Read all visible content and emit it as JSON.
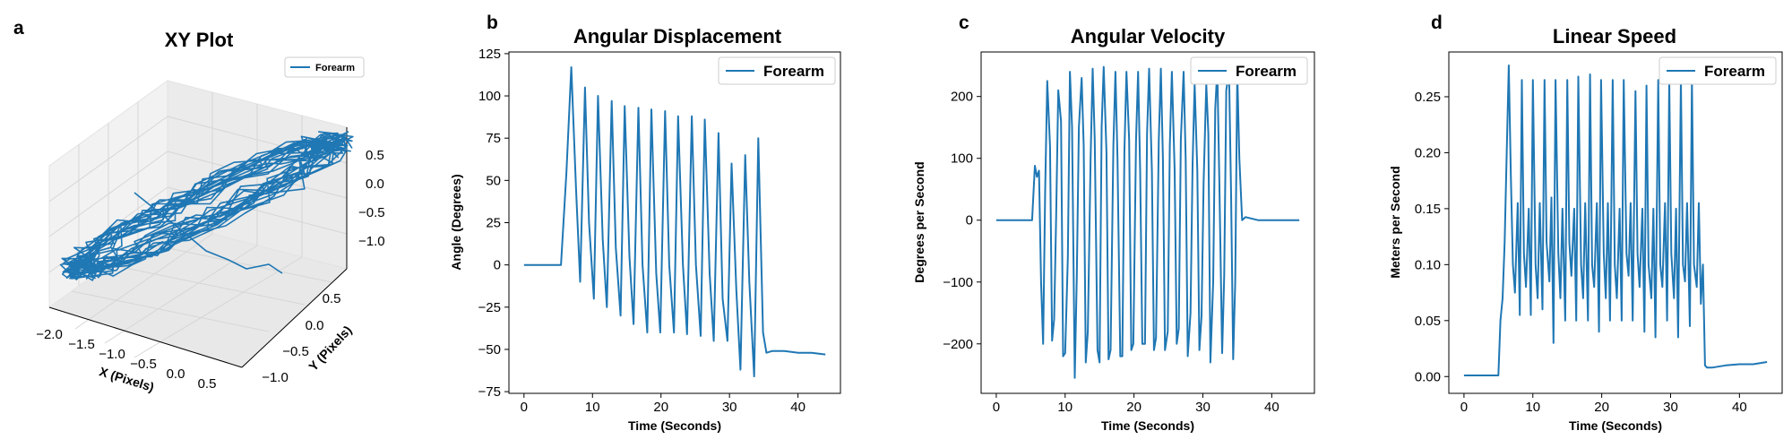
{
  "colors": {
    "series": "#1f77b4",
    "axis": "#000000",
    "pane": "#f2f2f2",
    "grid": "#d9d9d9",
    "legend_border": "#cccccc"
  },
  "chart_data": [
    {
      "id": "a",
      "panel": "a",
      "type": "line3d",
      "title": "XY Plot",
      "xlabel": "X (Pixels)",
      "ylabel": "Y (Pixels)",
      "zlabel": "",
      "legend": [
        "Forearm"
      ],
      "legend_position": "top-right",
      "xticks": [
        "−2.0",
        "−1.5",
        "−1.0",
        "−0.5",
        "0.0",
        "0.5"
      ],
      "yticks": [
        "−1.0",
        "−0.5",
        "0.0",
        "0.5"
      ],
      "zticks": [
        "0.5",
        "0.0",
        "−0.5",
        "−1.0"
      ],
      "xlim": [
        -2.0,
        0.8
      ],
      "ylim": [
        -1.2,
        0.8
      ],
      "zlim": [
        -1.3,
        0.8
      ],
      "grid": true
    },
    {
      "id": "b",
      "panel": "b",
      "type": "line",
      "title": "Angular Displacement",
      "xlabel": "Time (Seconds)",
      "ylabel": "Angle (Degrees)",
      "legend": [
        "Forearm"
      ],
      "legend_position": "top-right",
      "xlim": [
        -2.2,
        46.2
      ],
      "ylim": [
        -76,
        126
      ],
      "xticks": [
        0,
        10,
        20,
        30,
        40
      ],
      "yticks": [
        -75,
        -50,
        -25,
        0,
        25,
        50,
        75,
        100,
        125
      ],
      "grid": false,
      "series": [
        {
          "name": "Forearm",
          "x": [
            0,
            5.4,
            6.2,
            6.9,
            7.6,
            8.2,
            8.9,
            9.5,
            10.2,
            10.8,
            11.5,
            12.1,
            12.8,
            13.4,
            14.1,
            14.7,
            15.4,
            16.0,
            16.7,
            17.3,
            18.0,
            18.6,
            19.3,
            19.9,
            20.6,
            21.2,
            21.9,
            22.5,
            23.2,
            23.8,
            24.5,
            25.1,
            25.8,
            26.4,
            27.1,
            27.7,
            28.4,
            29.0,
            29.7,
            30.3,
            31.0,
            31.6,
            32.3,
            32.9,
            33.6,
            34.2,
            34.9,
            35.4,
            36.2,
            38,
            40,
            42,
            44
          ],
          "y": [
            0,
            0,
            55,
            117,
            45,
            -10,
            105,
            25,
            -20,
            100,
            15,
            -25,
            97,
            10,
            -30,
            94,
            5,
            -35,
            93,
            0,
            -40,
            92,
            -5,
            -40,
            91,
            0,
            -40,
            88,
            0,
            -41,
            88,
            0,
            -42,
            86,
            -5,
            -45,
            78,
            -20,
            -45,
            60,
            -15,
            -62,
            65,
            -10,
            -66,
            75,
            -40,
            -52,
            -51,
            -51,
            -52,
            -52,
            -53
          ]
        }
      ]
    },
    {
      "id": "c",
      "panel": "c",
      "type": "line",
      "title": "Angular Velocity",
      "xlabel": "Time (Seconds)",
      "ylabel": "Degrees per Second",
      "legend": [
        "Forearm"
      ],
      "legend_position": "top-right",
      "xlim": [
        -2.2,
        46.2
      ],
      "ylim": [
        -280,
        272
      ],
      "xticks": [
        0,
        10,
        20,
        30,
        40
      ],
      "yticks": [
        -200,
        -100,
        0,
        100,
        200
      ],
      "grid": false,
      "series": [
        {
          "name": "Forearm",
          "x": [
            0,
            5.2,
            5.6,
            5.9,
            6.2,
            6.5,
            6.8,
            7.1,
            7.4,
            7.8,
            8.1,
            8.4,
            8.7,
            9.0,
            9.4,
            9.7,
            10.0,
            10.4,
            10.7,
            11.0,
            11.4,
            11.7,
            12.0,
            12.4,
            12.7,
            13.0,
            13.3,
            13.7,
            14.0,
            14.3,
            14.7,
            15.0,
            15.3,
            15.6,
            16.0,
            16.3,
            16.6,
            17.0,
            17.3,
            17.6,
            18.0,
            18.3,
            18.6,
            18.9,
            19.3,
            19.6,
            19.9,
            20.3,
            20.6,
            20.9,
            21.2,
            21.6,
            21.9,
            22.2,
            22.6,
            22.9,
            23.2,
            23.6,
            23.9,
            24.2,
            24.5,
            24.9,
            25.2,
            25.5,
            25.9,
            26.2,
            26.5,
            26.8,
            27.2,
            27.5,
            27.8,
            28.2,
            28.5,
            28.8,
            29.2,
            29.5,
            29.8,
            30.1,
            30.5,
            30.8,
            31.1,
            31.5,
            31.8,
            32.1,
            32.4,
            32.8,
            33.1,
            33.4,
            33.8,
            34.1,
            34.4,
            34.7,
            35.0,
            35.3,
            35.7,
            36.2,
            38,
            40,
            42,
            44
          ],
          "y": [
            0,
            0,
            88,
            70,
            80,
            -100,
            -200,
            50,
            225,
            120,
            -195,
            -160,
            10,
            210,
            160,
            -220,
            -215,
            -60,
            240,
            150,
            -255,
            -90,
            150,
            230,
            120,
            -230,
            -180,
            100,
            245,
            130,
            -210,
            -230,
            150,
            248,
            110,
            -225,
            -210,
            120,
            240,
            100,
            -220,
            -220,
            110,
            240,
            130,
            -210,
            -200,
            130,
            240,
            80,
            -200,
            -200,
            140,
            245,
            80,
            -210,
            -190,
            130,
            245,
            100,
            -210,
            -180,
            120,
            240,
            80,
            -200,
            -175,
            130,
            240,
            100,
            -220,
            -150,
            90,
            220,
            80,
            -210,
            -155,
            60,
            220,
            140,
            -230,
            -100,
            180,
            245,
            60,
            -215,
            -90,
            210,
            240,
            40,
            -225,
            -100,
            240,
            100,
            0,
            5,
            0,
            0,
            0,
            0
          ]
        }
      ]
    },
    {
      "id": "d",
      "panel": "d",
      "type": "line",
      "title": "Linear Speed",
      "xlabel": "Time (Seconds)",
      "ylabel": "Meters per Second",
      "legend": [
        "Forearm"
      ],
      "legend_position": "top-right",
      "xlim": [
        -2.2,
        46.2
      ],
      "ylim": [
        -0.015,
        0.29
      ],
      "xticks": [
        0,
        10,
        20,
        30,
        40
      ],
      "yticks": [
        0.0,
        0.05,
        0.1,
        0.15,
        0.2,
        0.25
      ],
      "ytick_labels": [
        "0.00",
        "0.05",
        "0.10",
        "0.15",
        "0.20",
        "0.25"
      ],
      "grid": false,
      "series": [
        {
          "name": "Forearm",
          "x": [
            0,
            5.0,
            5.3,
            5.6,
            5.9,
            6.2,
            6.5,
            6.8,
            7.1,
            7.4,
            7.8,
            8.1,
            8.4,
            8.7,
            9.0,
            9.4,
            9.7,
            10.0,
            10.4,
            10.7,
            11.0,
            11.4,
            11.7,
            12.0,
            12.4,
            12.7,
            13.0,
            13.3,
            13.7,
            14.0,
            14.3,
            14.7,
            15.0,
            15.3,
            15.6,
            16.0,
            16.3,
            16.6,
            17.0,
            17.3,
            17.6,
            18.0,
            18.3,
            18.6,
            18.9,
            19.3,
            19.6,
            19.9,
            20.3,
            20.6,
            20.9,
            21.2,
            21.6,
            21.9,
            22.2,
            22.6,
            22.9,
            23.2,
            23.6,
            23.9,
            24.2,
            24.5,
            24.9,
            25.2,
            25.5,
            25.9,
            26.2,
            26.5,
            26.8,
            27.2,
            27.5,
            27.8,
            28.2,
            28.5,
            28.8,
            29.2,
            29.5,
            29.8,
            30.1,
            30.5,
            30.8,
            31.1,
            31.5,
            31.8,
            32.1,
            32.4,
            32.8,
            33.1,
            33.4,
            33.8,
            34.1,
            34.4,
            34.7,
            35.0,
            35.3,
            35.6,
            36.0,
            38,
            40,
            42,
            44
          ],
          "y": [
            0.001,
            0.001,
            0.05,
            0.07,
            0.12,
            0.2,
            0.278,
            0.18,
            0.1,
            0.075,
            0.155,
            0.055,
            0.265,
            0.11,
            0.08,
            0.15,
            0.055,
            0.265,
            0.1,
            0.07,
            0.155,
            0.06,
            0.265,
            0.12,
            0.085,
            0.16,
            0.03,
            0.265,
            0.11,
            0.07,
            0.15,
            0.05,
            0.265,
            0.12,
            0.09,
            0.15,
            0.05,
            0.268,
            0.1,
            0.07,
            0.155,
            0.05,
            0.27,
            0.1,
            0.08,
            0.155,
            0.04,
            0.265,
            0.11,
            0.07,
            0.155,
            0.05,
            0.265,
            0.1,
            0.07,
            0.15,
            0.05,
            0.265,
            0.11,
            0.09,
            0.155,
            0.05,
            0.255,
            0.11,
            0.08,
            0.15,
            0.04,
            0.26,
            0.1,
            0.07,
            0.15,
            0.035,
            0.265,
            0.1,
            0.08,
            0.155,
            0.05,
            0.265,
            0.11,
            0.07,
            0.15,
            0.035,
            0.265,
            0.1,
            0.085,
            0.155,
            0.045,
            0.265,
            0.1,
            0.08,
            0.155,
            0.065,
            0.1,
            0.01,
            0.008,
            0.008,
            0.008,
            0.01,
            0.011,
            0.011,
            0.013
          ]
        }
      ]
    }
  ]
}
